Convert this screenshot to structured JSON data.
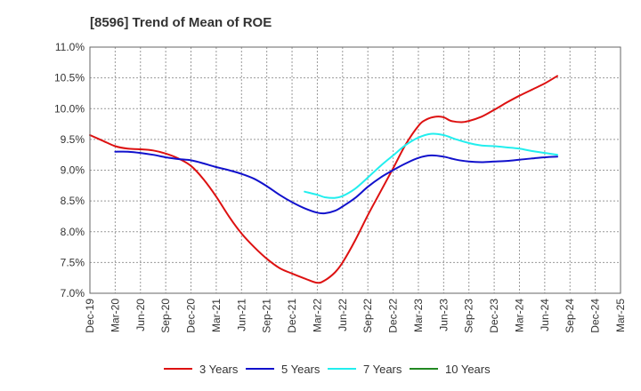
{
  "chart_data": {
    "type": "line",
    "title": "[8596]  Trend of Mean of ROE",
    "xlabel": "",
    "ylabel": "",
    "ylim": [
      7.0,
      11.0
    ],
    "y_ticks": [
      "7.0%",
      "7.5%",
      "8.0%",
      "8.5%",
      "9.0%",
      "9.5%",
      "10.0%",
      "10.5%",
      "11.0%"
    ],
    "y_tick_values": [
      7.0,
      7.5,
      8.0,
      8.5,
      9.0,
      9.5,
      10.0,
      10.5,
      11.0
    ],
    "categories": [
      "Dec-19",
      "Mar-20",
      "Jun-20",
      "Sep-20",
      "Dec-20",
      "Mar-21",
      "Jun-21",
      "Sep-21",
      "Dec-21",
      "Mar-22",
      "Jun-22",
      "Sep-22",
      "Dec-22",
      "Mar-23",
      "Jun-23",
      "Sep-23",
      "Dec-23",
      "Mar-24",
      "Jun-24",
      "Sep-24",
      "Dec-24",
      "Mar-25"
    ],
    "grid": true,
    "legend_position": "bottom",
    "series": [
      {
        "name": "3 Years",
        "color": "#dd1111",
        "points": [
          [
            0,
            9.57
          ],
          [
            0.5,
            9.48
          ],
          [
            1,
            9.39
          ],
          [
            1.5,
            9.35
          ],
          [
            2,
            9.34
          ],
          [
            2.5,
            9.32
          ],
          [
            3,
            9.27
          ],
          [
            3.5,
            9.19
          ],
          [
            4,
            9.07
          ],
          [
            4.5,
            8.85
          ],
          [
            5,
            8.57
          ],
          [
            5.5,
            8.25
          ],
          [
            6,
            7.97
          ],
          [
            6.5,
            7.75
          ],
          [
            7,
            7.56
          ],
          [
            7.5,
            7.41
          ],
          [
            8,
            7.32
          ],
          [
            8.5,
            7.24
          ],
          [
            9,
            7.17
          ],
          [
            9.3,
            7.21
          ],
          [
            9.7,
            7.34
          ],
          [
            10,
            7.5
          ],
          [
            10.5,
            7.86
          ],
          [
            11,
            8.27
          ],
          [
            11.5,
            8.65
          ],
          [
            12,
            9.03
          ],
          [
            12.5,
            9.42
          ],
          [
            13,
            9.72
          ],
          [
            13.3,
            9.82
          ],
          [
            13.7,
            9.87
          ],
          [
            14,
            9.86
          ],
          [
            14.3,
            9.8
          ],
          [
            14.7,
            9.78
          ],
          [
            15,
            9.8
          ],
          [
            15.5,
            9.87
          ],
          [
            16,
            9.98
          ],
          [
            16.5,
            10.1
          ],
          [
            17,
            10.21
          ],
          [
            17.5,
            10.31
          ],
          [
            18,
            10.41
          ],
          [
            18.5,
            10.53
          ]
        ]
      },
      {
        "name": "5 Years",
        "color": "#1111cc",
        "points": [
          [
            1,
            9.3
          ],
          [
            1.5,
            9.3
          ],
          [
            2,
            9.28
          ],
          [
            2.5,
            9.25
          ],
          [
            3,
            9.21
          ],
          [
            3.5,
            9.18
          ],
          [
            4,
            9.16
          ],
          [
            4.5,
            9.11
          ],
          [
            5,
            9.05
          ],
          [
            5.5,
            9.0
          ],
          [
            6,
            8.94
          ],
          [
            6.5,
            8.86
          ],
          [
            7,
            8.74
          ],
          [
            7.5,
            8.6
          ],
          [
            8,
            8.48
          ],
          [
            8.5,
            8.38
          ],
          [
            9,
            8.31
          ],
          [
            9.3,
            8.3
          ],
          [
            9.7,
            8.34
          ],
          [
            10,
            8.41
          ],
          [
            10.5,
            8.55
          ],
          [
            11,
            8.73
          ],
          [
            11.5,
            8.88
          ],
          [
            12,
            9.0
          ],
          [
            12.5,
            9.11
          ],
          [
            13,
            9.2
          ],
          [
            13.5,
            9.24
          ],
          [
            14,
            9.22
          ],
          [
            14.5,
            9.17
          ],
          [
            15,
            9.14
          ],
          [
            15.5,
            9.13
          ],
          [
            16,
            9.14
          ],
          [
            16.5,
            9.15
          ],
          [
            17,
            9.17
          ],
          [
            17.5,
            9.19
          ],
          [
            18,
            9.21
          ],
          [
            18.5,
            9.22
          ]
        ]
      },
      {
        "name": "7 Years",
        "color": "#22eeee",
        "points": [
          [
            8.5,
            8.65
          ],
          [
            9,
            8.6
          ],
          [
            9.3,
            8.56
          ],
          [
            9.7,
            8.55
          ],
          [
            10,
            8.58
          ],
          [
            10.5,
            8.7
          ],
          [
            11,
            8.88
          ],
          [
            11.5,
            9.07
          ],
          [
            12,
            9.24
          ],
          [
            12.5,
            9.41
          ],
          [
            13,
            9.53
          ],
          [
            13.5,
            9.59
          ],
          [
            14,
            9.57
          ],
          [
            14.5,
            9.5
          ],
          [
            15,
            9.44
          ],
          [
            15.5,
            9.4
          ],
          [
            16,
            9.39
          ],
          [
            16.5,
            9.37
          ],
          [
            17,
            9.35
          ],
          [
            17.5,
            9.31
          ],
          [
            18,
            9.28
          ],
          [
            18.5,
            9.25
          ]
        ]
      },
      {
        "name": "10 Years",
        "color": "#228822",
        "points": []
      }
    ]
  }
}
